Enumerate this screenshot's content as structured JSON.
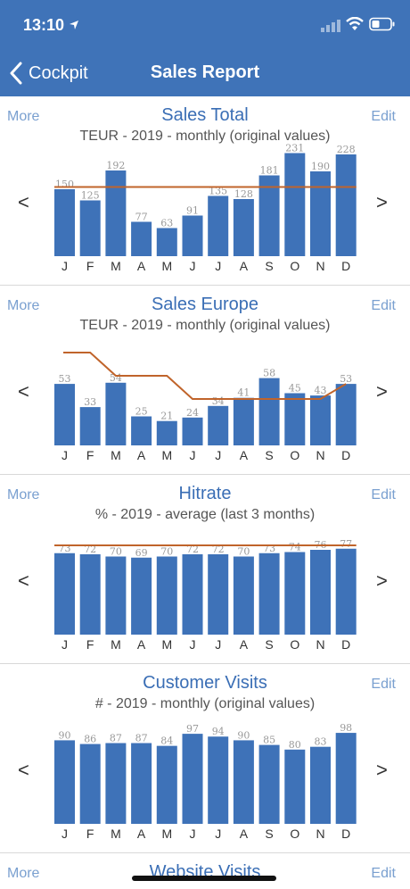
{
  "status_bar": {
    "time": "13:10"
  },
  "nav": {
    "back_label": "Cockpit",
    "title": "Sales Report"
  },
  "links": {
    "more": "More",
    "edit": "Edit"
  },
  "arrows": {
    "prev": "<",
    "next": ">"
  },
  "colors": {
    "header": "#3f73b8",
    "bar": "#3e72b8",
    "reference_line": "#c0642b",
    "title": "#3a6eb5",
    "link": "#7aa0d0"
  },
  "months": [
    "J",
    "F",
    "M",
    "A",
    "M",
    "J",
    "J",
    "A",
    "S",
    "O",
    "N",
    "D"
  ],
  "chart_data": [
    {
      "type": "bar",
      "title": "Sales Total",
      "subtitle": "TEUR - 2019 - monthly (original values)",
      "categories": [
        "J",
        "F",
        "M",
        "A",
        "M",
        "J",
        "J",
        "A",
        "S",
        "O",
        "N",
        "D"
      ],
      "values": [
        150,
        125,
        192,
        77,
        63,
        91,
        135,
        128,
        181,
        231,
        190,
        228
      ],
      "reference_line": [
        155,
        155,
        155,
        155,
        155,
        155,
        155,
        155,
        155,
        155,
        155,
        155
      ]
    },
    {
      "type": "bar",
      "title": "Sales Europe",
      "subtitle": "TEUR - 2019 - monthly (original values)",
      "categories": [
        "J",
        "F",
        "M",
        "A",
        "M",
        "J",
        "J",
        "A",
        "S",
        "O",
        "N",
        "D"
      ],
      "values": [
        53,
        33,
        54,
        25,
        21,
        24,
        34,
        41,
        58,
        45,
        43,
        53
      ],
      "reference_line": [
        80,
        80,
        60,
        60,
        60,
        40,
        40,
        40,
        40,
        40,
        40,
        53
      ]
    },
    {
      "type": "bar",
      "title": "Hitrate",
      "subtitle": "% - 2019 - average (last 3 months)",
      "categories": [
        "J",
        "F",
        "M",
        "A",
        "M",
        "J",
        "J",
        "A",
        "S",
        "O",
        "N",
        "D"
      ],
      "values": [
        73,
        72,
        70,
        69,
        70,
        72,
        72,
        70,
        73,
        74,
        76,
        77
      ],
      "reference_line": [
        80,
        80,
        80,
        80,
        80,
        80,
        80,
        80,
        80,
        80,
        80,
        80
      ]
    },
    {
      "type": "bar",
      "title": "Customer Visits",
      "subtitle": "# - 2019 - monthly (original values)",
      "categories": [
        "J",
        "F",
        "M",
        "A",
        "M",
        "J",
        "J",
        "A",
        "S",
        "O",
        "N",
        "D"
      ],
      "values": [
        90,
        86,
        87,
        87,
        84,
        97,
        94,
        90,
        85,
        80,
        83,
        98
      ],
      "reference_line": []
    }
  ],
  "next_card": {
    "title": "Website Visits"
  }
}
